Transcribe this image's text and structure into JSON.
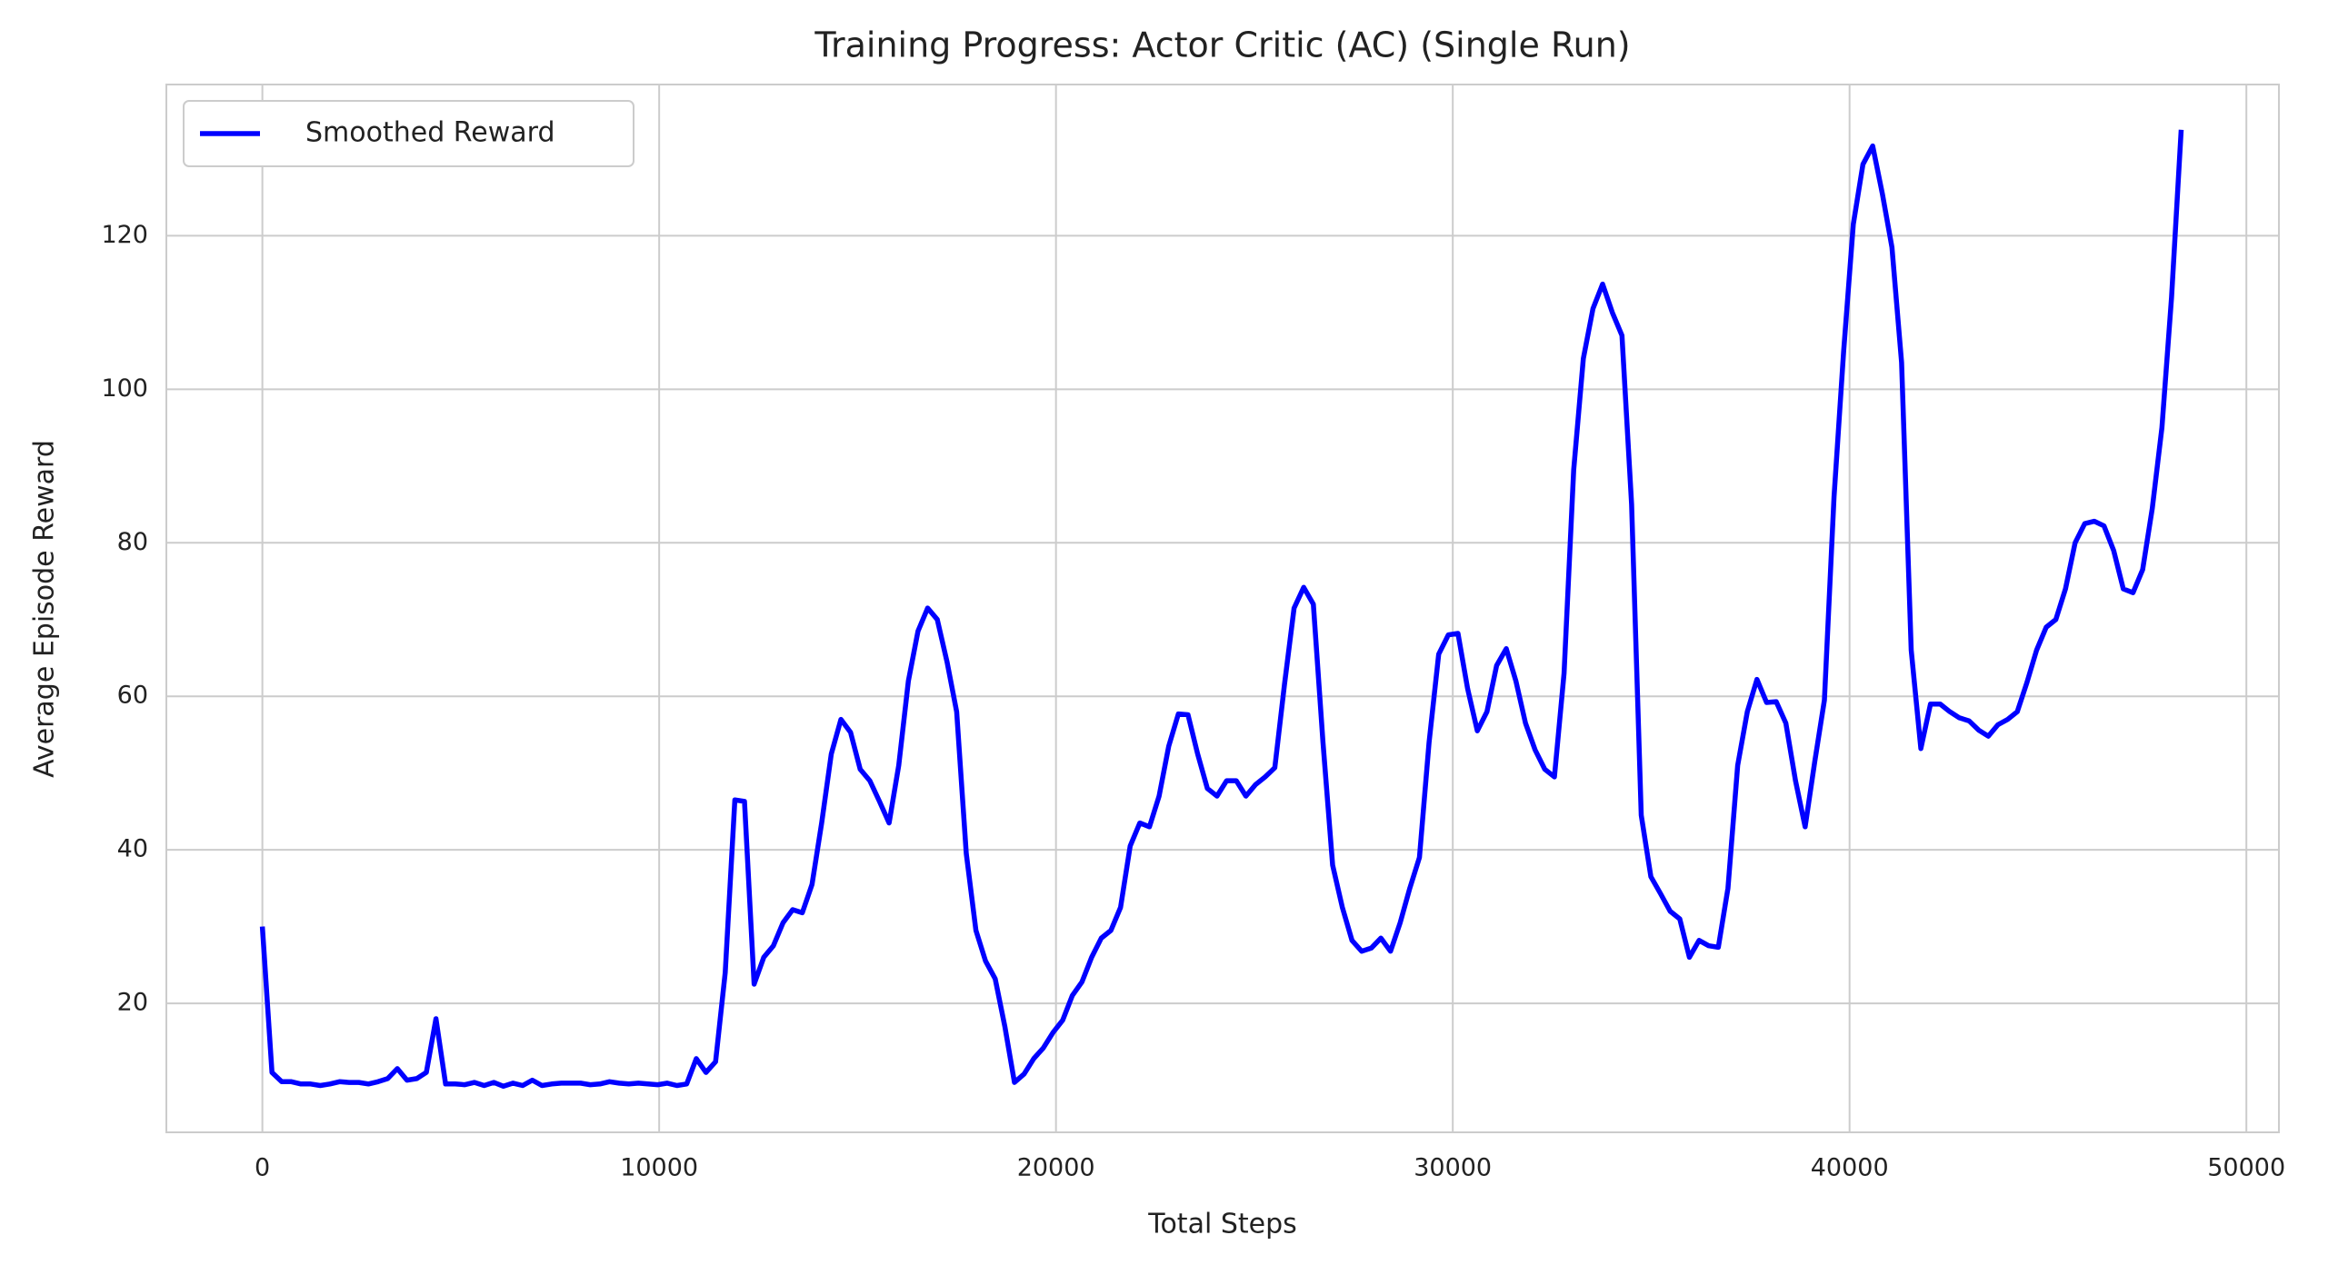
{
  "chart_data": {
    "type": "line",
    "title": "Training Progress: Actor Critic (AC) (Single Run)",
    "x_label": "Total Steps",
    "y_label": "Average Episode Reward",
    "x": [
      0,
      243,
      486,
      729,
      972,
      1215,
      1458,
      1701,
      1944,
      2187,
      2430,
      2673,
      2916,
      3159,
      3402,
      3645,
      3888,
      4131,
      4374,
      4617,
      4860,
      5103,
      5346,
      5589,
      5832,
      6075,
      6318,
      6561,
      6804,
      7047,
      7290,
      7533,
      7776,
      8019,
      8262,
      8505,
      8748,
      8991,
      9234,
      9477,
      9720,
      9963,
      10206,
      10449,
      10692,
      10935,
      11178,
      11421,
      11664,
      11907,
      12150,
      12393,
      12636,
      12879,
      13122,
      13365,
      13608,
      13851,
      14094,
      14337,
      14580,
      14823,
      15066,
      15309,
      15552,
      15795,
      16038,
      16281,
      16524,
      16767,
      17010,
      17253,
      17496,
      17739,
      17982,
      18225,
      18468,
      18711,
      18954,
      19197,
      19440,
      19683,
      19926,
      20169,
      20412,
      20655,
      20898,
      21141,
      21384,
      21627,
      21870,
      22113,
      22356,
      22599,
      22842,
      23085,
      23328,
      23571,
      23814,
      24057,
      24300,
      24543,
      24786,
      25029,
      25272,
      25515,
      25758,
      26001,
      26244,
      26487,
      26730,
      26973,
      27216,
      27459,
      27702,
      27945,
      28188,
      28431,
      28674,
      28917,
      29160,
      29403,
      29646,
      29889,
      30132,
      30375,
      30618,
      30861,
      31104,
      31347,
      31590,
      31833,
      32076,
      32319,
      32562,
      32805,
      33048,
      33291,
      33534,
      33777,
      34020,
      34263,
      34506,
      34749,
      34992,
      35235,
      35478,
      35721,
      35964,
      36207,
      36450,
      36693,
      36936,
      37179,
      37422,
      37665,
      37908,
      38151,
      38394,
      38637,
      38880,
      39123,
      39366,
      39609,
      39852,
      40095,
      40338,
      40581,
      40824,
      41067,
      41310,
      41553,
      41796,
      42039,
      42282,
      42525,
      42768,
      43011,
      43254,
      43497,
      43740,
      43983,
      44226,
      44469,
      44712,
      44955,
      45198,
      45441,
      45684,
      45927,
      46170,
      46413,
      46656,
      46899,
      47142,
      47385,
      47628,
      47871,
      48114,
      48357
    ],
    "series": [
      {
        "name": "Smoothed Reward",
        "color": "#0000ff",
        "values": [
          30,
          11,
          9.8,
          9.8,
          9.5,
          9.5,
          9.3,
          9.5,
          9.8,
          9.7,
          9.7,
          9.5,
          9.8,
          10.2,
          11.5,
          10,
          10.2,
          11,
          18,
          9.5,
          9.5,
          9.4,
          9.7,
          9.3,
          9.7,
          9.2,
          9.6,
          9.3,
          10,
          9.3,
          9.5,
          9.6,
          9.6,
          9.6,
          9.4,
          9.5,
          9.8,
          9.6,
          9.5,
          9.6,
          9.5,
          9.4,
          9.6,
          9.3,
          9.5,
          12.8,
          11,
          12.4,
          24,
          46.5,
          46.3,
          22.5,
          26,
          27.5,
          30.5,
          32.2,
          31.8,
          35.5,
          43.5,
          52.5,
          57,
          55.3,
          50.5,
          49,
          46.3,
          43.5,
          51,
          62,
          68.5,
          71.5,
          70,
          64.5,
          58,
          39.5,
          29.5,
          25.5,
          23.2,
          17,
          9.7,
          10.8,
          12.8,
          14.2,
          16.2,
          17.8,
          21,
          22.8,
          26,
          28.5,
          29.5,
          32.5,
          40.5,
          43.5,
          43,
          47,
          53.5,
          57.7,
          57.6,
          52.5,
          48,
          47,
          49,
          49,
          47,
          48.5,
          49.5,
          50.7,
          61.5,
          71.5,
          74.2,
          72,
          54,
          38,
          32.5,
          28.2,
          26.8,
          27.2,
          28.5,
          26.8,
          30.5,
          35,
          39,
          54,
          65.5,
          68,
          68.2,
          61,
          55.5,
          58,
          64,
          66.2,
          62,
          56.5,
          53,
          50.5,
          49.5,
          63,
          89.5,
          104,
          110.5,
          113.7,
          110,
          107,
          85,
          44.5,
          36.5,
          34.3,
          32,
          31,
          26,
          28.2,
          27.5,
          27.3,
          35,
          51,
          58,
          62.2,
          59.2,
          59.3,
          56.5,
          49,
          43,
          51.5,
          59.5,
          86,
          105,
          121.5,
          129.3,
          131.7,
          125.5,
          118.5,
          103.5,
          66,
          53.2,
          59,
          59,
          58,
          57.2,
          56.8,
          55.6,
          54.8,
          56.3,
          57,
          58,
          61.8,
          66,
          69,
          70,
          74,
          80,
          82.5,
          82.8,
          82.2,
          79,
          74,
          73.5,
          76.5,
          84.5,
          95,
          112,
          133.8
        ]
      }
    ],
    "xlim": [
      -2420,
      50820
    ],
    "ylim": [
      3.2,
      139.7
    ],
    "xticks": [
      0,
      10000,
      20000,
      30000,
      40000,
      50000
    ],
    "yticks": [
      20,
      40,
      60,
      80,
      100,
      120
    ],
    "grid": true,
    "legend": "upper left"
  }
}
